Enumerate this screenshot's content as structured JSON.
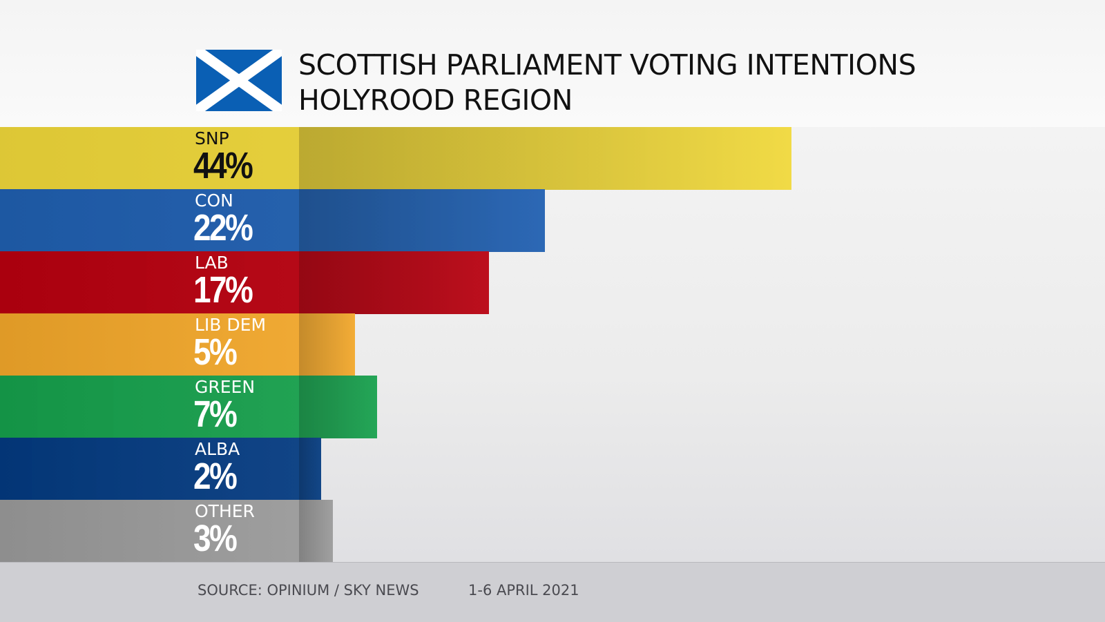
{
  "title_line1": "SCOTTISH PARLIAMENT VOTING INTENTIONS",
  "title_line2": "HOLYROOD REGION",
  "flag_icon": "saltire-flag-icon",
  "footer": {
    "source": "SOURCE: OPINIUM / SKY NEWS",
    "date": "1-6 APRIL 2021"
  },
  "chart_data": {
    "type": "bar",
    "orientation": "horizontal",
    "title": "SCOTTISH PARLIAMENT VOTING INTENTIONS HOLYROOD REGION",
    "categories": [
      "SNP",
      "CON",
      "LAB",
      "LIB DEM",
      "GREEN",
      "ALBA",
      "OTHER"
    ],
    "values": [
      44,
      22,
      17,
      5,
      7,
      2,
      3
    ],
    "labels": [
      "44%",
      "22%",
      "17%",
      "5%",
      "7%",
      "2%",
      "3%"
    ],
    "unit": "%",
    "colors": [
      "#f0d83a",
      "#1f5fb0",
      "#b8000f",
      "#f2a72a",
      "#16a04c",
      "#033a80",
      "#9a9a9a"
    ],
    "label_colors": [
      "#111111",
      "#ffffff",
      "#ffffff",
      "#ffffff",
      "#ffffff",
      "#ffffff",
      "#ffffff"
    ],
    "grid": false,
    "legend": "none"
  }
}
